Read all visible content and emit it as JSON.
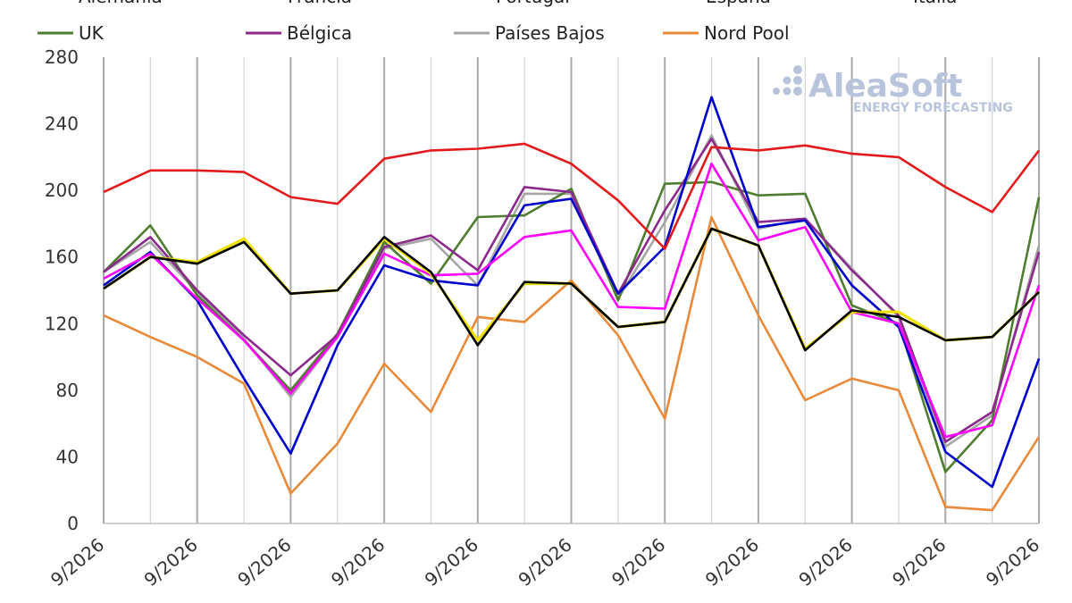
{
  "chart_data": {
    "type": "line",
    "ylim": [
      0,
      280
    ],
    "yticks": [
      0,
      40,
      80,
      120,
      160,
      200,
      240,
      280
    ],
    "grid": "vertical",
    "x_tick_labels": [
      "9/2026",
      "9/2026",
      "9/2026",
      "9/2026",
      "9/2026",
      "9/2026",
      "9/2026",
      "9/2026",
      "9/2026",
      "9/2026",
      "9/2026"
    ],
    "legend_placement": "top",
    "legend_top_row_partial": [
      "Alemania",
      "Francia",
      "Portugal",
      "España",
      "Italia"
    ],
    "series": [
      {
        "name": "UK",
        "color": "#4e7d2f",
        "values": [
          151,
          179,
          137,
          110,
          80,
          114,
          169,
          144,
          184,
          185,
          201,
          134,
          204,
          205,
          197,
          198,
          131,
          120,
          31,
          62,
          196
        ]
      },
      {
        "name": "Bélgica",
        "color": "#8b2a8b",
        "values": [
          151,
          172,
          140,
          113,
          89,
          113,
          166,
          173,
          152,
          202,
          199,
          138,
          188,
          231,
          181,
          183,
          152,
          125,
          49,
          67,
          163
        ]
      },
      {
        "name": "Países Bajos",
        "color": "#a6a6a6",
        "values": [
          151,
          169,
          139,
          111,
          76,
          112,
          165,
          171,
          143,
          198,
          198,
          135,
          181,
          233,
          177,
          183,
          153,
          124,
          46,
          65,
          167
        ]
      },
      {
        "name": "Nord Pool",
        "color": "#e88a3a",
        "values": [
          125,
          112,
          100,
          84,
          18,
          48,
          96,
          67,
          124,
          121,
          146,
          113,
          63,
          184,
          125,
          74,
          87,
          80,
          10,
          8,
          52
        ]
      },
      {
        "name": "Alemania",
        "color": "#0000cc",
        "values": [
          143,
          163,
          134,
          87,
          42,
          107,
          155,
          146,
          143,
          191,
          195,
          138,
          166,
          256,
          178,
          182,
          143,
          118,
          43,
          22,
          99
        ]
      },
      {
        "name": "Francia",
        "color": "#e31a1c",
        "values": [
          199,
          212,
          212,
          211,
          196,
          192,
          219,
          224,
          225,
          228,
          216,
          194,
          165,
          226,
          224,
          227,
          222,
          220,
          202,
          187,
          224
        ]
      },
      {
        "name": "Portugal",
        "color": "#f0e000",
        "values": [
          141,
          160,
          157,
          171,
          138,
          140,
          171,
          150,
          110,
          144,
          144,
          118,
          121,
          177,
          167,
          105,
          127,
          127,
          110,
          112,
          139
        ]
      },
      {
        "name": "España",
        "color": "#000000",
        "values": [
          141,
          160,
          156,
          169,
          138,
          140,
          172,
          151,
          107,
          145,
          144,
          118,
          121,
          177,
          167,
          104,
          128,
          124,
          110,
          112,
          139
        ]
      },
      {
        "name": "Italia",
        "color": "#ff00ff",
        "values": [
          147,
          162,
          135,
          110,
          78,
          112,
          162,
          149,
          150,
          172,
          176,
          130,
          129,
          216,
          170,
          178,
          127,
          120,
          52,
          59,
          143
        ]
      }
    ],
    "legend_visible": [
      "UK",
      "Bélgica",
      "Países Bajos",
      "Nord Pool"
    ]
  },
  "watermark": {
    "brand": "AleaSoft",
    "tagline": "ENERGY FORECASTING",
    "color": "#b8c4dc"
  }
}
